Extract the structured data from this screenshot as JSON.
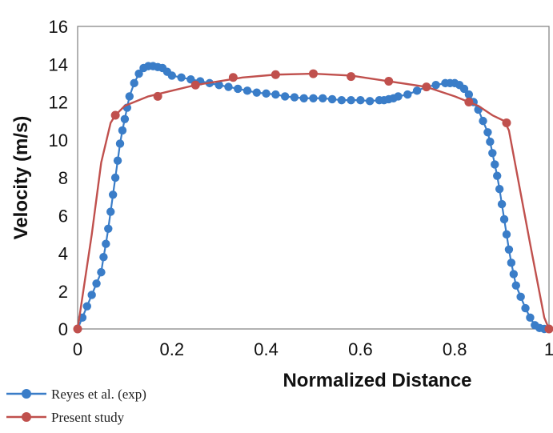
{
  "chart_data": {
    "type": "line",
    "title": "",
    "xlabel": "Normalized Distance",
    "ylabel": "Velocity (m/s)",
    "xlim": [
      0,
      1
    ],
    "ylim": [
      0,
      16
    ],
    "xticks": [
      0,
      0.2,
      0.4,
      0.6,
      0.8,
      1
    ],
    "xtick_labels": [
      "0",
      "0.2",
      "0.4",
      "0.6",
      "0.8",
      "1"
    ],
    "yticks": [
      0,
      2,
      4,
      6,
      8,
      10,
      12,
      14,
      16
    ],
    "ytick_labels": [
      "0",
      "2",
      "4",
      "6",
      "8",
      "10",
      "12",
      "14",
      "16"
    ],
    "grid": false,
    "legend_position": "bottom-left",
    "series": [
      {
        "name": "Reyes et al. (exp)",
        "color": "#3a7dc8",
        "marker": "circle",
        "x": [
          0,
          0.01,
          0.02,
          0.03,
          0.04,
          0.05,
          0.055,
          0.06,
          0.065,
          0.07,
          0.075,
          0.08,
          0.085,
          0.09,
          0.095,
          0.1,
          0.105,
          0.11,
          0.12,
          0.13,
          0.14,
          0.15,
          0.16,
          0.17,
          0.18,
          0.19,
          0.2,
          0.22,
          0.24,
          0.26,
          0.28,
          0.3,
          0.32,
          0.34,
          0.36,
          0.38,
          0.4,
          0.42,
          0.44,
          0.46,
          0.48,
          0.5,
          0.52,
          0.54,
          0.56,
          0.58,
          0.6,
          0.62,
          0.64,
          0.65,
          0.66,
          0.67,
          0.68,
          0.7,
          0.72,
          0.74,
          0.76,
          0.78,
          0.79,
          0.8,
          0.81,
          0.82,
          0.83,
          0.84,
          0.85,
          0.86,
          0.87,
          0.875,
          0.88,
          0.885,
          0.89,
          0.895,
          0.9,
          0.905,
          0.91,
          0.915,
          0.92,
          0.925,
          0.93,
          0.94,
          0.95,
          0.96,
          0.97,
          0.98,
          0.99
        ],
        "values": [
          0,
          0.6,
          1.2,
          1.8,
          2.4,
          3.0,
          3.8,
          4.5,
          5.3,
          6.2,
          7.1,
          8.0,
          8.9,
          9.8,
          10.5,
          11.1,
          11.7,
          12.3,
          13.0,
          13.5,
          13.8,
          13.9,
          13.9,
          13.85,
          13.8,
          13.6,
          13.4,
          13.3,
          13.2,
          13.1,
          13.0,
          12.9,
          12.8,
          12.7,
          12.6,
          12.5,
          12.45,
          12.4,
          12.3,
          12.25,
          12.2,
          12.2,
          12.2,
          12.15,
          12.1,
          12.1,
          12.1,
          12.05,
          12.1,
          12.1,
          12.15,
          12.2,
          12.3,
          12.4,
          12.6,
          12.8,
          12.9,
          13.0,
          13.0,
          13.0,
          12.9,
          12.7,
          12.4,
          12.0,
          11.6,
          11.0,
          10.4,
          9.9,
          9.3,
          8.7,
          8.1,
          7.4,
          6.6,
          5.8,
          5.0,
          4.2,
          3.5,
          2.9,
          2.3,
          1.7,
          1.1,
          0.6,
          0.2,
          0.05,
          0
        ]
      },
      {
        "name": "Present study",
        "color": "#c0504d",
        "marker": "circle",
        "x": [
          0,
          0.03,
          0.05,
          0.07,
          0.08,
          0.1,
          0.15,
          0.2,
          0.25,
          0.3,
          0.35,
          0.42,
          0.5,
          0.58,
          0.66,
          0.74,
          0.8,
          0.85,
          0.88,
          0.905,
          0.915,
          0.93,
          0.96,
          0.99,
          1.0
        ],
        "values": [
          0,
          5.0,
          8.8,
          10.9,
          11.3,
          11.8,
          12.3,
          12.6,
          12.9,
          13.1,
          13.3,
          13.45,
          13.5,
          13.4,
          13.1,
          12.8,
          12.3,
          11.8,
          11.3,
          11.0,
          10.5,
          8.5,
          4.5,
          0.6,
          0
        ]
      }
    ],
    "marked_points": {
      "Present study": [
        [
          0,
          0
        ],
        [
          0.08,
          11.3
        ],
        [
          0.17,
          12.3
        ],
        [
          0.25,
          12.9
        ],
        [
          0.33,
          13.3
        ],
        [
          0.42,
          13.45
        ],
        [
          0.5,
          13.5
        ],
        [
          0.58,
          13.35
        ],
        [
          0.66,
          13.1
        ],
        [
          0.74,
          12.8
        ],
        [
          0.83,
          12.0
        ],
        [
          0.91,
          10.9
        ],
        [
          1.0,
          0
        ]
      ]
    }
  }
}
